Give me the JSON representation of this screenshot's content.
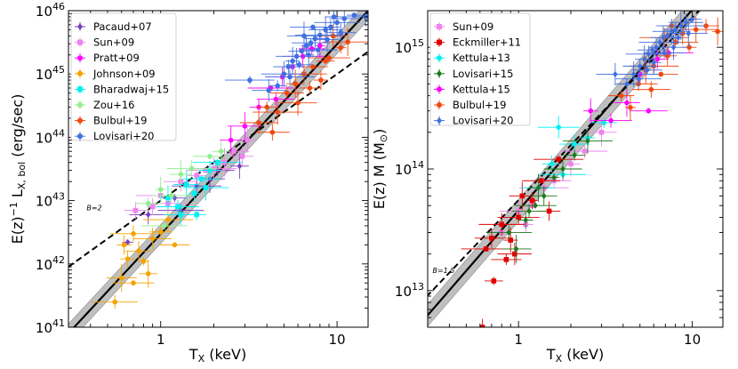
{
  "chart_data": [
    {
      "type": "scatter",
      "id": "lt",
      "xlabel": "T",
      "xlabel_sub": "X",
      "xlabel_unit": " (keV)",
      "ylabel": "E(z)",
      "ylabel_sup": "−1",
      "ylabel_mid": " L",
      "ylabel_sub": "X, bol",
      "ylabel_unit": " (erg/sec)",
      "xscale": "log",
      "yscale": "log",
      "xlim": [
        0.3,
        15
      ],
      "ylim": [
        1e+41,
        1e+46
      ],
      "x_ticks": [
        {
          "v": 1,
          "label": "1"
        },
        {
          "v": 10,
          "label": "10"
        }
      ],
      "y_ticks": [
        {
          "v": 1e+41,
          "base": "10",
          "exp": "41"
        },
        {
          "v": 1e+42,
          "base": "10",
          "exp": "42"
        },
        {
          "v": 1e+43,
          "base": "10",
          "exp": "43"
        },
        {
          "v": 1e+44,
          "base": "10",
          "exp": "44"
        },
        {
          "v": 1e+45,
          "base": "10",
          "exp": "45"
        },
        {
          "v": 1e+46,
          "base": "10",
          "exp": "46"
        }
      ],
      "fit_line": {
        "norm": 8e+43,
        "pivot": 3.0,
        "slope": 3.0,
        "scatter_dex": 0.15
      },
      "self_similar_line": {
        "norm": 3.6e+44,
        "pivot": 6.0,
        "slope": 2.0
      },
      "annotation": {
        "text": "B=2",
        "x": 0.38,
        "y": 7e+42
      },
      "legend_position": "top-left",
      "series": [
        {
          "name": "Pacaud+07",
          "color": "#7b3fbf",
          "marker": "diamond",
          "points": [
            [
              0.65,
              2.2e+42
            ],
            [
              0.85,
              6e+42
            ],
            [
              1.2,
              1.1e+43
            ],
            [
              1.6,
              1.7e+43
            ],
            [
              2.1,
              3e+43
            ],
            [
              2.8,
              3.5e+43
            ],
            [
              1.3,
              7e+42
            ],
            [
              1.9,
              2.2e+43
            ]
          ]
        },
        {
          "name": "Sun+09",
          "color": "#ee82ee",
          "marker": "square",
          "points": [
            [
              0.72,
              7e+42
            ],
            [
              1.0,
              1.2e+43
            ],
            [
              1.3,
              2e+43
            ],
            [
              1.6,
              2.5e+43
            ],
            [
              2.0,
              3.2e+43
            ],
            [
              2.6,
              6e+43
            ],
            [
              3.1,
              9e+43
            ],
            [
              1.1,
              9e+42
            ],
            [
              2.3,
              4e+43
            ],
            [
              0.9,
              8e+42
            ],
            [
              1.8,
              3e+43
            ],
            [
              2.9,
              5e+43
            ]
          ]
        },
        {
          "name": "Pratt+09",
          "color": "#ff00ff",
          "marker": "circle",
          "points": [
            [
              3.0,
              1.5e+44
            ],
            [
              3.6,
              3e+44
            ],
            [
              4.2,
              6e+44
            ],
            [
              4.9,
              9e+44
            ],
            [
              5.6,
              1.3e+45
            ],
            [
              6.4,
              1.9e+45
            ],
            [
              7.2,
              2.5e+45
            ],
            [
              8.0,
              2.8e+45
            ],
            [
              4.5,
              4e+44
            ],
            [
              2.5,
              9e+43
            ]
          ]
        },
        {
          "name": "Johnson+09",
          "color": "#f5a300",
          "marker": "circle",
          "points": [
            [
              0.55,
              2.5e+41
            ],
            [
              0.6,
              6e+41
            ],
            [
              0.65,
              1.2e+42
            ],
            [
              0.7,
              5e+41
            ],
            [
              0.75,
              1.6e+42
            ],
            [
              0.8,
              1.1e+42
            ],
            [
              0.9,
              2.5e+42
            ],
            [
              1.0,
              3.2e+42
            ],
            [
              1.1,
              5e+42
            ],
            [
              1.25,
              8e+42
            ],
            [
              0.85,
              7e+41
            ],
            [
              0.7,
              3e+42
            ],
            [
              1.2,
              2e+42
            ],
            [
              0.62,
              2e+42
            ]
          ]
        },
        {
          "name": "Bharadwaj+15",
          "color": "#00f0f0",
          "marker": "square",
          "points": [
            [
              1.1,
              1.1e+43
            ],
            [
              1.25,
              8e+42
            ],
            [
              1.4,
              1.8e+43
            ],
            [
              1.55,
              1.3e+43
            ],
            [
              1.7,
              2.2e+43
            ],
            [
              1.9,
              3e+43
            ],
            [
              2.1,
              4e+43
            ],
            [
              1.3,
              6e+42
            ],
            [
              1.6,
              6e+42
            ],
            [
              1.8,
              1.6e+43
            ]
          ]
        },
        {
          "name": "Zou+16",
          "color": "#90ee90",
          "marker": "circle",
          "points": [
            [
              0.85,
              9e+42
            ],
            [
              1.0,
              1.5e+43
            ],
            [
              1.15,
              1.2e+43
            ],
            [
              1.3,
              2.6e+43
            ],
            [
              1.5,
              3.2e+43
            ],
            [
              1.9,
              5e+43
            ],
            [
              2.2,
              6e+43
            ],
            [
              1.05,
              4e+42
            ]
          ]
        },
        {
          "name": "Bulbul+19",
          "color": "#f04810",
          "marker": "circle",
          "points": [
            [
              3.6,
              1.7e+44
            ],
            [
              4.0,
              3e+44
            ],
            [
              4.6,
              2.5e+44
            ],
            [
              5.2,
              5e+44
            ],
            [
              5.8,
              7e+44
            ],
            [
              6.5,
              1e+45
            ],
            [
              7.3,
              1.3e+45
            ],
            [
              8.1,
              8e+44
            ],
            [
              9.0,
              1.8e+45
            ],
            [
              9.5,
              4e+45
            ],
            [
              10.5,
              2.6e+45
            ],
            [
              6.0,
              3.5e+44
            ],
            [
              7.0,
              6e+44
            ],
            [
              11.5,
              3.2e+45
            ],
            [
              4.3,
              1.2e+44
            ],
            [
              8.6,
              1.6e+45
            ]
          ]
        },
        {
          "name": "Lovisari+20",
          "color": "#4070e0",
          "marker": "circle",
          "points": [
            [
              3.2,
              8e+44
            ],
            [
              4.1,
              5.5e+44
            ],
            [
              4.6,
              6.5e+44
            ],
            [
              5.0,
              1e+45
            ],
            [
              5.3,
              1.3e+45
            ],
            [
              5.6,
              1.6e+45
            ],
            [
              5.9,
              1.9e+45
            ],
            [
              6.3,
              2.3e+45
            ],
            [
              6.7,
              2.8e+45
            ],
            [
              7.1,
              3.1e+45
            ],
            [
              7.5,
              3.6e+45
            ],
            [
              8.0,
              4.1e+45
            ],
            [
              8.6,
              5e+45
            ],
            [
              9.2,
              5.5e+45
            ],
            [
              10.0,
              6.5e+45
            ],
            [
              11.0,
              7.5e+45
            ],
            [
              12.5,
              8.5e+45
            ],
            [
              14.5,
              8e+45
            ],
            [
              6.1,
              1.4e+45
            ],
            [
              6.9,
              2e+45
            ],
            [
              7.8,
              2.4e+45
            ],
            [
              8.8,
              3.5e+45
            ],
            [
              5.4,
              9e+44
            ],
            [
              6.5,
              4e+45
            ],
            [
              9.6,
              8e+45
            ],
            [
              7.3,
              5.5e+45
            ],
            [
              10.5,
              4.5e+45
            ]
          ]
        }
      ]
    },
    {
      "type": "scatter",
      "id": "mt",
      "xlabel": "T",
      "xlabel_sub": "X",
      "xlabel_unit": " (keV)",
      "ylabel": "E(z) M (M",
      "ylabel_sub": "⊙",
      "ylabel_unit": ")",
      "xscale": "log",
      "yscale": "log",
      "xlim": [
        0.3,
        15
      ],
      "ylim": [
        5000000000000.0,
        2000000000000000.0
      ],
      "x_ticks": [
        {
          "v": 1,
          "label": "1"
        },
        {
          "v": 10,
          "label": "10"
        }
      ],
      "y_ticks": [
        {
          "v": 10000000000000.0,
          "base": "10",
          "exp": "13"
        },
        {
          "v": 100000000000000.0,
          "base": "10",
          "exp": "14"
        },
        {
          "v": 1000000000000000.0,
          "base": "10",
          "exp": "15"
        }
      ],
      "fit_line": {
        "norm": 650000000000000.0,
        "pivot": 5.0,
        "slope": 1.65,
        "scatter_dex": 0.09
      },
      "self_similar_line": {
        "norm": 620000000000000.0,
        "pivot": 5.0,
        "slope": 1.5
      },
      "annotation": {
        "text": "B=1.5",
        "x": 0.32,
        "y": 14000000000000.0
      },
      "legend_position": "top-left",
      "series": [
        {
          "name": "Sun+09",
          "color": "#ee82ee",
          "marker": "square",
          "points": [
            [
              0.8,
              30000000000000.0
            ],
            [
              1.0,
              45000000000000.0
            ],
            [
              1.2,
              50000000000000.0
            ],
            [
              1.4,
              70000000000000.0
            ],
            [
              1.6,
              80000000000000.0
            ],
            [
              2.0,
              110000000000000.0
            ],
            [
              2.4,
              140000000000000.0
            ],
            [
              3.0,
              200000000000000.0
            ],
            [
              1.1,
              35000000000000.0
            ]
          ]
        },
        {
          "name": "Eckmiller+11",
          "color": "#e00000",
          "marker": "square",
          "points": [
            [
              0.62,
              5000000000000.0
            ],
            [
              0.65,
              22000000000000.0
            ],
            [
              0.7,
              27000000000000.0
            ],
            [
              0.72,
              12000000000000.0
            ],
            [
              0.8,
              35000000000000.0
            ],
            [
              0.85,
              18000000000000.0
            ],
            [
              0.9,
              26000000000000.0
            ],
            [
              1.0,
              40000000000000.0
            ],
            [
              1.05,
              60000000000000.0
            ],
            [
              1.2,
              55000000000000.0
            ],
            [
              1.35,
              80000000000000.0
            ],
            [
              1.5,
              45000000000000.0
            ],
            [
              1.7,
              120000000000000.0
            ],
            [
              0.95,
              20000000000000.0
            ]
          ]
        },
        {
          "name": "Kettula+13",
          "color": "#00f0f0",
          "marker": "circle",
          "points": [
            [
              1.3,
              70000000000000.0
            ],
            [
              1.55,
              110000000000000.0
            ],
            [
              1.8,
              90000000000000.0
            ],
            [
              2.1,
              160000000000000.0
            ],
            [
              2.5,
              180000000000000.0
            ],
            [
              1.7,
              220000000000000.0
            ],
            [
              3.1,
              240000000000000.0
            ]
          ]
        },
        {
          "name": "Lovisari+15",
          "color": "#1a7a1a",
          "marker": "diamond",
          "points": [
            [
              0.88,
              30000000000000.0
            ],
            [
              0.97,
              22000000000000.0
            ],
            [
              1.1,
              38000000000000.0
            ],
            [
              1.25,
              50000000000000.0
            ],
            [
              1.4,
              60000000000000.0
            ],
            [
              1.6,
              85000000000000.0
            ],
            [
              1.8,
              100000000000000.0
            ],
            [
              2.1,
              130000000000000.0
            ],
            [
              2.5,
              170000000000000.0
            ],
            [
              1.15,
              45000000000000.0
            ],
            [
              1.3,
              70000000000000.0
            ]
          ]
        },
        {
          "name": "Kettula+15",
          "color": "#ff00ff",
          "marker": "circle",
          "points": [
            [
              2.6,
              300000000000000.0
            ],
            [
              3.4,
              250000000000000.0
            ],
            [
              4.2,
              350000000000000.0
            ],
            [
              5.0,
              600000000000000.0
            ],
            [
              5.6,
              300000000000000.0
            ],
            [
              6.3,
              800000000000000.0
            ],
            [
              7.3,
              900000000000000.0
            ]
          ]
        },
        {
          "name": "Bulbul+19",
          "color": "#f04810",
          "marker": "circle",
          "points": [
            [
              3.9,
              400000000000000.0
            ],
            [
              4.4,
              320000000000000.0
            ],
            [
              4.9,
              500000000000000.0
            ],
            [
              5.4,
              650000000000000.0
            ],
            [
              6.0,
              700000000000000.0
            ],
            [
              6.6,
              600000000000000.0
            ],
            [
              7.2,
              850000000000000.0
            ],
            [
              8.0,
              1100000000000000.0
            ],
            [
              8.8,
              1300000000000000.0
            ],
            [
              9.6,
              1000000000000000.0
            ],
            [
              10.5,
              1400000000000000.0
            ],
            [
              12.0,
              1500000000000000.0
            ],
            [
              14.0,
              1350000000000000.0
            ],
            [
              5.8,
              450000000000000.0
            ],
            [
              7.6,
              1500000000000000.0
            ],
            [
              6.9,
              1200000000000000.0
            ]
          ]
        },
        {
          "name": "Lovisari+20",
          "color": "#4070e0",
          "marker": "diamond",
          "points": [
            [
              3.6,
              600000000000000.0
            ],
            [
              4.2,
              500000000000000.0
            ],
            [
              4.6,
              600000000000000.0
            ],
            [
              5.0,
              700000000000000.0
            ],
            [
              5.3,
              800000000000000.0
            ],
            [
              5.6,
              880000000000000.0
            ],
            [
              5.9,
              950000000000000.0
            ],
            [
              6.2,
              1000000000000000.0
            ],
            [
              6.5,
              1100000000000000.0
            ],
            [
              6.8,
              1200000000000000.0
            ],
            [
              7.2,
              1250000000000000.0
            ],
            [
              7.6,
              1350000000000000.0
            ],
            [
              8.0,
              1400000000000000.0
            ],
            [
              8.6,
              1500000000000000.0
            ],
            [
              9.2,
              1600000000000000.0
            ],
            [
              10.0,
              1700000000000000.0
            ],
            [
              4.9,
              550000000000000.0
            ],
            [
              5.5,
              650000000000000.0
            ],
            [
              6.0,
              750000000000000.0
            ],
            [
              6.9,
              900000000000000.0
            ],
            [
              7.8,
              1000000000000000.0
            ],
            [
              8.3,
              1200000000000000.0
            ],
            [
              9.5,
              1300000000000000.0
            ]
          ]
        }
      ]
    }
  ]
}
